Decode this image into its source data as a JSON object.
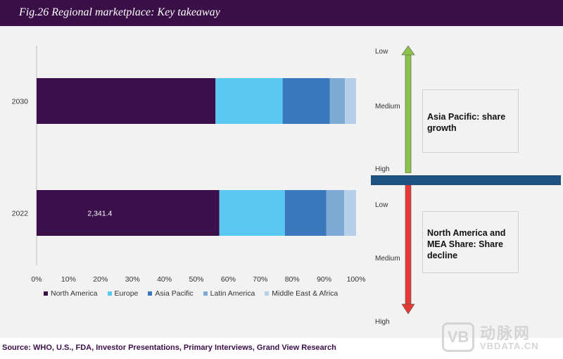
{
  "header": {
    "title": "Fig.26  Regional marketplace: Key takeaway"
  },
  "chart_data": {
    "type": "bar",
    "orientation": "horizontal",
    "stacked": true,
    "categories": [
      "2030",
      "2022"
    ],
    "series": [
      {
        "name": "North America",
        "values": [
          56.0,
          57.2
        ],
        "color": "#3b0f4a"
      },
      {
        "name": "Europe",
        "values": [
          21.0,
          20.5
        ],
        "color": "#5bc8f4"
      },
      {
        "name": "Asia Pacific",
        "values": [
          14.8,
          13.0
        ],
        "color": "#3a78bd"
      },
      {
        "name": "Latin America",
        "values": [
          4.7,
          5.6
        ],
        "color": "#7eaad6"
      },
      {
        "name": "Middle East & Africa",
        "values": [
          3.5,
          3.7
        ],
        "color": "#b6cfe9"
      }
    ],
    "data_labels": [
      {
        "category": "2022",
        "series": "North America",
        "text": "2,341.4"
      }
    ],
    "x_ticks": [
      "0%",
      "10%",
      "20%",
      "30%",
      "40%",
      "50%",
      "60%",
      "70%",
      "80%",
      "90%",
      "100%"
    ],
    "xlim": [
      0,
      100
    ],
    "legend_position": "bottom",
    "grid": false
  },
  "scale": {
    "top": [
      "Low",
      "Medium",
      "High"
    ],
    "bottom": [
      "Low",
      "Medium",
      "High"
    ],
    "up_arrow_color": "#8bc34a",
    "down_arrow_color": "#e53935"
  },
  "callouts": {
    "asia": "Asia Pacific: share growth",
    "na_mea": "North America and MEA Share: Share decline"
  },
  "source": "Source: WHO, U.S., FDA, Investor Presentations, Primary Interviews, Grand View Research",
  "watermark": {
    "logo": "VB",
    "cn": "动脉网",
    "en": "VBDATA.CN"
  }
}
